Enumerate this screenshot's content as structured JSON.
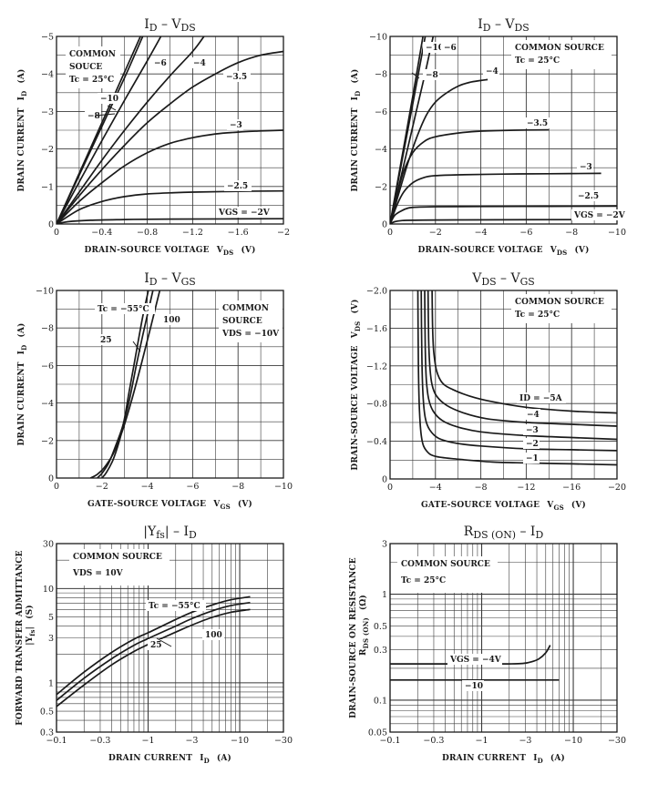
{
  "colors": {
    "ink": "#1a1a1a",
    "grid": "#3a3a3a",
    "paper": "#ffffff"
  },
  "chart_data": [
    {
      "id": "id-vds-low",
      "type": "line",
      "title_main": "I",
      "title_main_sub": "D",
      "title_sep": " – ",
      "title_second": "V",
      "title_second_sub": "DS",
      "xlabel": "DRAIN-SOURCE VOLTAGE",
      "xlabel_sym": "V",
      "xlabel_sym_sub": "DS",
      "xlabel_unit": "(V)",
      "ylabel": "DRAIN CURRENT",
      "ylabel_sym": "I",
      "ylabel_sym_sub": "D",
      "ylabel_unit": "(A)",
      "xscale": "linear",
      "yscale": "linear",
      "xlim": [
        0,
        -2
      ],
      "ylim": [
        0,
        -5
      ],
      "xticks": [
        0,
        -0.4,
        -0.8,
        -1.2,
        -1.6,
        -2
      ],
      "xtick_labels": [
        "0",
        "−0.4",
        "−0.8",
        "−1.2",
        "−1.6",
        "−2"
      ],
      "yticks": [
        0,
        -1,
        -2,
        -3,
        -4,
        -5
      ],
      "ytick_labels": [
        "0",
        "−1",
        "−2",
        "−3",
        "−4",
        "−5"
      ],
      "grid": true,
      "notes": [
        "COMMON",
        "SOUCE",
        "Tc = 25°C"
      ],
      "series": [
        {
          "name": "VGS = -10",
          "label": "−10",
          "x": [
            0,
            -0.2,
            -0.4,
            -0.6,
            -0.74
          ],
          "y": [
            0,
            -1.35,
            -2.7,
            -4.05,
            -5
          ]
        },
        {
          "name": "VGS = -8",
          "label": "−8",
          "x": [
            0,
            -0.2,
            -0.4,
            -0.6,
            -0.76
          ],
          "y": [
            0,
            -1.3,
            -2.6,
            -3.9,
            -5
          ]
        },
        {
          "name": "VGS = -6",
          "label": "−6",
          "x": [
            0,
            -0.2,
            -0.4,
            -0.6,
            -0.8,
            -0.92
          ],
          "y": [
            0,
            -1.12,
            -2.22,
            -3.3,
            -4.35,
            -5
          ]
        },
        {
          "name": "VGS = -4",
          "label": "−4",
          "x": [
            0,
            -0.2,
            -0.4,
            -0.6,
            -0.8,
            -1.0,
            -1.2,
            -1.3
          ],
          "y": [
            0,
            -0.85,
            -1.7,
            -2.5,
            -3.25,
            -3.95,
            -4.6,
            -5
          ]
        },
        {
          "name": "VGS = -3.5",
          "label": "−3.5",
          "x": [
            0,
            -0.2,
            -0.4,
            -0.6,
            -0.8,
            -1.0,
            -1.2,
            -1.4,
            -1.6,
            -1.8,
            -2.0
          ],
          "y": [
            0,
            -0.75,
            -1.45,
            -2.1,
            -2.7,
            -3.2,
            -3.65,
            -4.0,
            -4.3,
            -4.5,
            -4.6
          ]
        },
        {
          "name": "VGS = -3",
          "label": "−3",
          "x": [
            0,
            -0.2,
            -0.4,
            -0.6,
            -0.8,
            -1.0,
            -1.2,
            -1.4,
            -1.6,
            -1.8,
            -2.0
          ],
          "y": [
            0,
            -0.6,
            -1.1,
            -1.55,
            -1.9,
            -2.15,
            -2.3,
            -2.4,
            -2.45,
            -2.48,
            -2.5
          ]
        },
        {
          "name": "VGS = -2.5",
          "label": "−2.5",
          "x": [
            0,
            -0.2,
            -0.4,
            -0.6,
            -0.8,
            -1.0,
            -1.2,
            -1.6,
            -2.0
          ],
          "y": [
            0,
            -0.38,
            -0.6,
            -0.73,
            -0.8,
            -0.83,
            -0.85,
            -0.87,
            -0.88
          ]
        },
        {
          "name": "VGS = -2V",
          "label": "VGS = −2V",
          "x": [
            0,
            -0.1,
            -0.3,
            -0.6,
            -1.0,
            -2.0
          ],
          "y": [
            0,
            -0.06,
            -0.1,
            -0.12,
            -0.13,
            -0.14
          ]
        }
      ]
    },
    {
      "id": "id-vds-high",
      "type": "line",
      "title_main": "I",
      "title_main_sub": "D",
      "title_sep": " – ",
      "title_second": "V",
      "title_second_sub": "DS",
      "xlabel": "DRAIN-SOURCE VOLTAGE",
      "xlabel_sym": "V",
      "xlabel_sym_sub": "DS",
      "xlabel_unit": "(V)",
      "ylabel": "DRAIN CURRENT",
      "ylabel_sym": "I",
      "ylabel_sym_sub": "D",
      "ylabel_unit": "(A)",
      "xscale": "linear",
      "yscale": "linear",
      "xlim": [
        0,
        -10
      ],
      "ylim": [
        0,
        -10
      ],
      "xticks": [
        0,
        -2,
        -4,
        -6,
        -8,
        -10
      ],
      "xtick_labels": [
        "0",
        "−2",
        "−4",
        "−6",
        "−8",
        "−10"
      ],
      "yticks": [
        0,
        -2,
        -4,
        -6,
        -8,
        -10
      ],
      "ytick_labels": [
        "0",
        "−2",
        "−4",
        "−6",
        "−8",
        "−10"
      ],
      "grid": true,
      "notes": [
        "COMMON SOURCE",
        "Tc = 25°C"
      ],
      "series": [
        {
          "name": "VGS = -10",
          "label": "−10",
          "x": [
            0,
            -0.5,
            -1.0,
            -1.45
          ],
          "y": [
            0,
            -3.4,
            -6.8,
            -10
          ]
        },
        {
          "name": "VGS = -8",
          "label": "−8",
          "x": [
            0,
            -0.5,
            -1.0,
            -1.55
          ],
          "y": [
            0,
            -3.2,
            -6.4,
            -10
          ]
        },
        {
          "name": "VGS = -6",
          "label": "−6",
          "x": [
            0,
            -0.5,
            -1.0,
            -1.5,
            -1.9
          ],
          "y": [
            0,
            -2.6,
            -5.2,
            -7.8,
            -10
          ]
        },
        {
          "name": "VGS = -4",
          "label": "−4",
          "x": [
            0,
            -0.4,
            -0.8,
            -1.2,
            -1.6,
            -2.0,
            -2.5,
            -3.0,
            -3.5,
            -4.0,
            -4.3
          ],
          "y": [
            0,
            -1.7,
            -3.3,
            -4.7,
            -5.8,
            -6.5,
            -7.0,
            -7.35,
            -7.55,
            -7.65,
            -7.7
          ]
        },
        {
          "name": "VGS = -3.5",
          "label": "−3.5",
          "x": [
            0,
            -0.3,
            -0.6,
            -1.0,
            -1.5,
            -2.0,
            -3.0,
            -4.0,
            -5.5,
            -7.0
          ],
          "y": [
            0,
            -1.5,
            -2.8,
            -3.8,
            -4.4,
            -4.65,
            -4.85,
            -4.95,
            -5.0,
            -5.02
          ]
        },
        {
          "name": "VGS = -3",
          "label": "−3",
          "x": [
            0,
            -0.3,
            -0.6,
            -1.0,
            -1.5,
            -2.0,
            -3.0,
            -5.0,
            -7.0,
            -9.3
          ],
          "y": [
            0,
            -1.0,
            -1.7,
            -2.2,
            -2.48,
            -2.58,
            -2.62,
            -2.66,
            -2.68,
            -2.7
          ]
        },
        {
          "name": "VGS = -2.5",
          "label": "−2.5",
          "x": [
            0,
            -0.2,
            -0.5,
            -0.8,
            -1.2,
            -2.0,
            -4.0,
            -7.0,
            -10.0
          ],
          "y": [
            0,
            -0.45,
            -0.7,
            -0.85,
            -0.9,
            -0.92,
            -0.93,
            -0.94,
            -0.95
          ]
        },
        {
          "name": "VGS = -2V",
          "label": "VGS = −2V",
          "x": [
            0,
            -0.2,
            -0.5,
            -1.0,
            -3.0,
            -10.0
          ],
          "y": [
            0,
            -0.12,
            -0.18,
            -0.2,
            -0.22,
            -0.24
          ]
        }
      ]
    },
    {
      "id": "id-vgs",
      "type": "line",
      "title_main": "I",
      "title_main_sub": "D",
      "title_sep": " – ",
      "title_second": "V",
      "title_second_sub": "GS",
      "xlabel": "GATE-SOURCE VOLTAGE",
      "xlabel_sym": "V",
      "xlabel_sym_sub": "GS",
      "xlabel_unit": "(V)",
      "ylabel": "DRAIN CURRENT",
      "ylabel_sym": "I",
      "ylabel_sym_sub": "D",
      "ylabel_unit": "(A)",
      "xscale": "linear",
      "yscale": "linear",
      "xlim": [
        0,
        -10
      ],
      "ylim": [
        0,
        -10
      ],
      "xticks": [
        0,
        -2,
        -4,
        -6,
        -8,
        -10
      ],
      "xtick_labels": [
        "0",
        "−2",
        "−4",
        "−6",
        "−8",
        "−10"
      ],
      "yticks": [
        0,
        -2,
        -4,
        -6,
        -8,
        -10
      ],
      "ytick_labels": [
        "0",
        "−2",
        "−4",
        "−6",
        "−8",
        "−10"
      ],
      "grid": true,
      "notes": [
        "COMMON",
        "SOURCE",
        "VDS = −10V"
      ],
      "series": [
        {
          "name": "Tc = -55°C",
          "label": "Tc = −55°C",
          "x": [
            -2.0,
            -2.2,
            -2.5,
            -2.8,
            -3.0,
            -3.2,
            -3.5,
            -3.8,
            -4.05
          ],
          "y": [
            0,
            -0.3,
            -1.0,
            -2.1,
            -3.2,
            -4.6,
            -6.6,
            -8.6,
            -10
          ]
        },
        {
          "name": "Tc = 25°C",
          "label": "25",
          "x": [
            -1.8,
            -2.0,
            -2.3,
            -2.6,
            -2.9,
            -3.2,
            -3.5,
            -3.8,
            -4.25
          ],
          "y": [
            0,
            -0.25,
            -0.8,
            -1.7,
            -2.7,
            -4.1,
            -5.9,
            -7.6,
            -10
          ]
        },
        {
          "name": "Tc = 100°C",
          "label": "100",
          "x": [
            -1.5,
            -1.8,
            -2.1,
            -2.5,
            -2.9,
            -3.3,
            -3.7,
            -4.1,
            -4.55
          ],
          "y": [
            0,
            -0.2,
            -0.55,
            -1.3,
            -2.5,
            -4.1,
            -5.9,
            -7.8,
            -10
          ]
        }
      ]
    },
    {
      "id": "vds-vgs",
      "type": "line",
      "title_main": "V",
      "title_main_sub": "DS",
      "title_sep": " – ",
      "title_second": "V",
      "title_second_sub": "GS",
      "xlabel": "GATE-SOURCE VOLTAGE",
      "xlabel_sym": "V",
      "xlabel_sym_sub": "GS",
      "xlabel_unit": "(V)",
      "ylabel": "DRAIN-SOURCE VOLTAGE",
      "ylabel_sym": "V",
      "ylabel_sym_sub": "DS",
      "ylabel_unit": "(V)",
      "xscale": "linear",
      "yscale": "linear",
      "xlim": [
        0,
        -20
      ],
      "ylim": [
        0,
        -2.0
      ],
      "xticks": [
        0,
        -4,
        -8,
        -12,
        -16,
        -20
      ],
      "xtick_labels": [
        "0",
        "−4",
        "−8",
        "−12",
        "−16",
        "−20"
      ],
      "yticks": [
        0,
        -0.4,
        -0.8,
        -1.2,
        -1.6,
        -2.0
      ],
      "ytick_labels": [
        "0",
        "−0.4",
        "−0.8",
        "−1.2",
        "−1.6",
        "−2.0"
      ],
      "grid": true,
      "notes": [
        "COMMON SOURCE",
        "Tc = 25°C"
      ],
      "series": [
        {
          "name": "ID = -5A",
          "label": "ID = −5A",
          "x": [
            -3.7,
            -3.75,
            -3.85,
            -4.1,
            -4.6,
            -5.5,
            -7.0,
            -9.0,
            -12.0,
            -16.0,
            -20.0
          ],
          "y": [
            -2.0,
            -1.6,
            -1.35,
            -1.15,
            -1.02,
            -0.95,
            -0.88,
            -0.82,
            -0.76,
            -0.72,
            -0.7
          ]
        },
        {
          "name": "ID = -4",
          "label": "−4",
          "x": [
            -3.35,
            -3.4,
            -3.5,
            -3.7,
            -4.1,
            -5.0,
            -6.5,
            -8.5,
            -12.0,
            -16.0,
            -20.0
          ],
          "y": [
            -2.0,
            -1.5,
            -1.2,
            -1.0,
            -0.88,
            -0.78,
            -0.7,
            -0.64,
            -0.6,
            -0.58,
            -0.56
          ]
        },
        {
          "name": "ID = -3",
          "label": "−3",
          "x": [
            -3.05,
            -3.1,
            -3.2,
            -3.4,
            -3.8,
            -4.6,
            -6.0,
            -8.0,
            -12.0,
            -16.0,
            -20.0
          ],
          "y": [
            -2.0,
            -1.4,
            -1.05,
            -0.85,
            -0.72,
            -0.62,
            -0.55,
            -0.5,
            -0.46,
            -0.44,
            -0.42
          ]
        },
        {
          "name": "ID = -2",
          "label": "−2",
          "x": [
            -2.75,
            -2.8,
            -2.9,
            -3.1,
            -3.5,
            -4.3,
            -5.8,
            -8.0,
            -12.0,
            -16.0,
            -20.0
          ],
          "y": [
            -2.0,
            -1.3,
            -0.9,
            -0.65,
            -0.52,
            -0.43,
            -0.38,
            -0.35,
            -0.32,
            -0.31,
            -0.3
          ]
        },
        {
          "name": "ID = -1",
          "label": "−1",
          "x": [
            -2.45,
            -2.5,
            -2.6,
            -2.8,
            -3.2,
            -4.0,
            -6.0,
            -9.0,
            -12.0,
            -16.0,
            -20.0
          ],
          "y": [
            -2.0,
            -1.2,
            -0.7,
            -0.42,
            -0.3,
            -0.24,
            -0.21,
            -0.18,
            -0.17,
            -0.16,
            -0.15
          ]
        }
      ]
    },
    {
      "id": "yfs-id",
      "type": "line",
      "title_main": "|Y",
      "title_main_sub": "fs",
      "title_main_post": "|",
      "title_sep": " – ",
      "title_second": "I",
      "title_second_sub": "D",
      "xlabel": "DRAIN CURRENT",
      "xlabel_sym": "I",
      "xlabel_sym_sub": "D",
      "xlabel_unit": "(A)",
      "ylabel": "FORWARD TRANSFER ADMITTANCE",
      "ylabel2_sym": "|Y",
      "ylabel2_sym_sub": "fs",
      "ylabel2_sym_post": "|",
      "ylabel_unit": "(S)",
      "xscale": "log",
      "yscale": "log",
      "xlim": [
        -0.1,
        -30
      ],
      "ylim": [
        0.3,
        30
      ],
      "xticks": [
        -0.1,
        -0.3,
        -1,
        -3,
        -10,
        -30
      ],
      "xtick_labels": [
        "−0.1",
        "−0.3",
        "−1",
        "−3",
        "−10",
        "−30"
      ],
      "yticks": [
        0.3,
        0.5,
        1,
        3,
        5,
        10,
        30
      ],
      "ytick_labels": [
        "0.3",
        "0.5",
        "1",
        "3",
        "5",
        "10",
        "30"
      ],
      "grid": true,
      "notes": [
        "COMMON SOURCE",
        "VDS = 10V"
      ],
      "series": [
        {
          "name": "Tc = -55°C",
          "label": "Tc = −55°C",
          "x": [
            -0.1,
            -0.2,
            -0.4,
            -0.7,
            -1,
            -2,
            -3,
            -5,
            -8,
            -13
          ],
          "y": [
            0.75,
            1.3,
            2.1,
            2.9,
            3.4,
            4.7,
            5.6,
            6.7,
            7.6,
            8.2
          ]
        },
        {
          "name": "Tc = 25°C",
          "label": "25",
          "x": [
            -0.1,
            -0.2,
            -0.4,
            -0.7,
            -1,
            -2,
            -3,
            -5,
            -8,
            -13
          ],
          "y": [
            0.65,
            1.12,
            1.8,
            2.5,
            2.95,
            4.0,
            4.8,
            5.8,
            6.6,
            7.1
          ]
        },
        {
          "name": "Tc = 100°C",
          "label": "100",
          "x": [
            -0.1,
            -0.2,
            -0.4,
            -0.7,
            -1,
            -2,
            -3,
            -5,
            -8,
            -13
          ],
          "y": [
            0.56,
            0.95,
            1.55,
            2.15,
            2.55,
            3.45,
            4.1,
            4.95,
            5.6,
            6.0
          ]
        }
      ]
    },
    {
      "id": "rdson-id",
      "type": "line",
      "title_main": "R",
      "title_main_sub": "DS (ON)",
      "title_sep": " – ",
      "title_second": "I",
      "title_second_sub": "D",
      "xlabel": "DRAIN CURRENT",
      "xlabel_sym": "I",
      "xlabel_sym_sub": "D",
      "xlabel_unit": "(A)",
      "ylabel": "DRAIN-SOURCE ON RESISTANCE",
      "ylabel2_sym": "R",
      "ylabel2_sym_sub": "DS (ON)",
      "ylabel_unit": "(Ω)",
      "xscale": "log",
      "yscale": "log",
      "xlim": [
        -0.1,
        -30
      ],
      "ylim": [
        0.05,
        3
      ],
      "xticks": [
        -0.1,
        -0.3,
        -1,
        -3,
        -10,
        -30
      ],
      "xtick_labels": [
        "−0.1",
        "−0.3",
        "−1",
        "−3",
        "−10",
        "−30"
      ],
      "yticks": [
        0.05,
        0.1,
        0.3,
        0.5,
        1,
        3
      ],
      "ytick_labels": [
        "0.05",
        "0.1",
        "0.3",
        "0.5",
        "1",
        "3"
      ],
      "grid": true,
      "notes": [
        "COMMON SOURCE",
        "Tc = 25°C"
      ],
      "series": [
        {
          "name": "VGS = -4V",
          "label": "VGS = −4V",
          "x": [
            -0.1,
            -0.5,
            -1,
            -2,
            -2.8,
            -3.5,
            -4.2,
            -5.0,
            -5.6
          ],
          "y": [
            0.22,
            0.22,
            0.22,
            0.22,
            0.222,
            0.23,
            0.245,
            0.28,
            0.33
          ]
        },
        {
          "name": "VGS = -10",
          "label": "−10",
          "x": [
            -0.1,
            -1,
            -3,
            -7
          ],
          "y": [
            0.155,
            0.155,
            0.155,
            0.155
          ]
        }
      ]
    }
  ]
}
